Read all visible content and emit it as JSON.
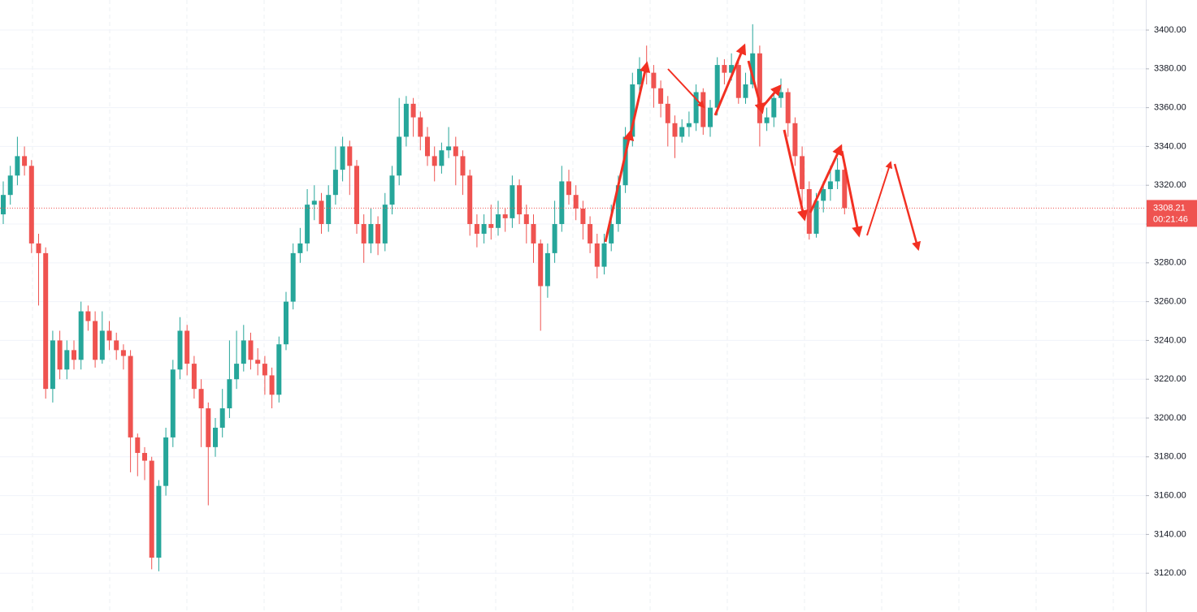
{
  "chart_data": {
    "type": "candlestick",
    "up_color": "#26a69a",
    "down_color": "#ef5350",
    "grid": true,
    "ylim": [
      3100,
      3415.5
    ],
    "yticks": [
      {
        "value": 3120,
        "label": "3120.00"
      },
      {
        "value": 3140,
        "label": "3140.00"
      },
      {
        "value": 3160,
        "label": "3160.00"
      },
      {
        "value": 3180,
        "label": "3180.00"
      },
      {
        "value": 3200,
        "label": "3200.00"
      },
      {
        "value": 3220,
        "label": "3220.00"
      },
      {
        "value": 3240,
        "label": "3240.00"
      },
      {
        "value": 3260,
        "label": "3260.00"
      },
      {
        "value": 3280,
        "label": "3280.00"
      },
      {
        "value": 3300,
        "label": "3300.00"
      },
      {
        "value": 3320,
        "label": "3320.00"
      },
      {
        "value": 3340,
        "label": "3340.00"
      },
      {
        "value": 3360,
        "label": "3360.00"
      },
      {
        "value": 3380,
        "label": "3380.00"
      },
      {
        "value": 3400,
        "label": "3400.00"
      }
    ],
    "current_price": 3308.21,
    "countdown": "00:21:46",
    "open": [
      3305,
      3315,
      3325,
      3335,
      3330,
      3290,
      3285,
      3215,
      3240,
      3225,
      3235,
      3230,
      3255,
      3250,
      3230,
      3245,
      3240,
      3235,
      3232,
      3190,
      3182,
      3178,
      3128,
      3165,
      3190,
      3225,
      3245,
      3228,
      3215,
      3205,
      3185,
      3195,
      3205,
      3220,
      3228,
      3240,
      3230,
      3228,
      3222,
      3212,
      3238,
      3260,
      3285,
      3290,
      3310,
      3312,
      3300,
      3315,
      3328,
      3340,
      3330,
      3300,
      3290,
      3300,
      3290,
      3310,
      3325,
      3345,
      3362,
      3355,
      3345,
      3335,
      3330,
      3338,
      3340,
      3335,
      3325,
      3300,
      3295,
      3300,
      3298,
      3305,
      3303,
      3320,
      3305,
      3300,
      3290,
      3268,
      3285,
      3300,
      3322,
      3315,
      3308,
      3300,
      3290,
      3278,
      3290,
      3300,
      3320,
      3345,
      3372,
      3380,
      3378,
      3370,
      3362,
      3352,
      3345,
      3350,
      3352,
      3368,
      3350,
      3360,
      3382,
      3378,
      3382,
      3365,
      3372,
      3388,
      3352,
      3355,
      3365,
      3368,
      3352,
      3335,
      3318,
      3295,
      3312,
      3318,
      3322,
      3328
    ],
    "high": [
      3322,
      3330,
      3345,
      3340,
      3333,
      3295,
      3288,
      3245,
      3245,
      3240,
      3240,
      3260,
      3258,
      3255,
      3255,
      3250,
      3244,
      3238,
      3235,
      3192,
      3185,
      3180,
      3168,
      3195,
      3230,
      3252,
      3248,
      3232,
      3220,
      3208,
      3200,
      3215,
      3240,
      3245,
      3248,
      3244,
      3236,
      3232,
      3226,
      3242,
      3265,
      3290,
      3298,
      3318,
      3320,
      3316,
      3320,
      3340,
      3345,
      3343,
      3333,
      3305,
      3308,
      3304,
      3316,
      3330,
      3365,
      3366,
      3365,
      3358,
      3350,
      3340,
      3342,
      3350,
      3345,
      3338,
      3328,
      3305,
      3305,
      3310,
      3312,
      3308,
      3325,
      3323,
      3310,
      3305,
      3292,
      3290,
      3312,
      3330,
      3328,
      3320,
      3312,
      3304,
      3295,
      3295,
      3310,
      3325,
      3350,
      3378,
      3386,
      3392,
      3382,
      3374,
      3366,
      3356,
      3354,
      3358,
      3372,
      3370,
      3364,
      3386,
      3385,
      3388,
      3385,
      3378,
      3403,
      3392,
      3360,
      3370,
      3375,
      3370,
      3355,
      3340,
      3322,
      3316,
      3322,
      3330,
      3334,
      3332
    ],
    "low": [
      3300,
      3310,
      3320,
      3325,
      3285,
      3258,
      3210,
      3208,
      3220,
      3220,
      3225,
      3225,
      3245,
      3226,
      3228,
      3235,
      3230,
      3225,
      3172,
      3170,
      3168,
      3122,
      3121,
      3160,
      3185,
      3220,
      3222,
      3210,
      3185,
      3155,
      3180,
      3190,
      3200,
      3215,
      3224,
      3225,
      3222,
      3212,
      3205,
      3208,
      3235,
      3256,
      3280,
      3286,
      3302,
      3295,
      3296,
      3310,
      3322,
      3315,
      3295,
      3280,
      3285,
      3284,
      3286,
      3305,
      3320,
      3340,
      3345,
      3338,
      3330,
      3322,
      3326,
      3334,
      3320,
      3315,
      3294,
      3288,
      3290,
      3292,
      3294,
      3296,
      3298,
      3300,
      3290,
      3280,
      3245,
      3262,
      3280,
      3296,
      3310,
      3302,
      3292,
      3285,
      3272,
      3274,
      3286,
      3296,
      3316,
      3340,
      3365,
      3372,
      3360,
      3355,
      3340,
      3334,
      3342,
      3345,
      3348,
      3346,
      3345,
      3356,
      3372,
      3374,
      3362,
      3362,
      3370,
      3340,
      3348,
      3350,
      3360,
      3345,
      3330,
      3310,
      3292,
      3293,
      3306,
      3312,
      3318,
      3305
    ],
    "close": [
      3315,
      3325,
      3335,
      3330,
      3290,
      3285,
      3215,
      3240,
      3225,
      3235,
      3230,
      3255,
      3250,
      3230,
      3245,
      3240,
      3235,
      3232,
      3190,
      3182,
      3178,
      3128,
      3165,
      3190,
      3225,
      3245,
      3228,
      3215,
      3205,
      3185,
      3195,
      3205,
      3220,
      3228,
      3240,
      3230,
      3228,
      3222,
      3212,
      3238,
      3260,
      3285,
      3290,
      3310,
      3312,
      3300,
      3315,
      3328,
      3340,
      3330,
      3300,
      3290,
      3300,
      3290,
      3310,
      3325,
      3345,
      3362,
      3355,
      3345,
      3335,
      3330,
      3338,
      3340,
      3335,
      3325,
      3300,
      3295,
      3300,
      3298,
      3305,
      3303,
      3320,
      3305,
      3300,
      3290,
      3268,
      3285,
      3300,
      3322,
      3315,
      3308,
      3300,
      3290,
      3278,
      3290,
      3300,
      3320,
      3345,
      3372,
      3380,
      3378,
      3370,
      3362,
      3352,
      3345,
      3350,
      3352,
      3368,
      3350,
      3360,
      3382,
      3378,
      3382,
      3365,
      3372,
      3388,
      3352,
      3355,
      3365,
      3368,
      3352,
      3335,
      3318,
      3295,
      3312,
      3318,
      3322,
      3328,
      3308.21
    ]
  }
}
